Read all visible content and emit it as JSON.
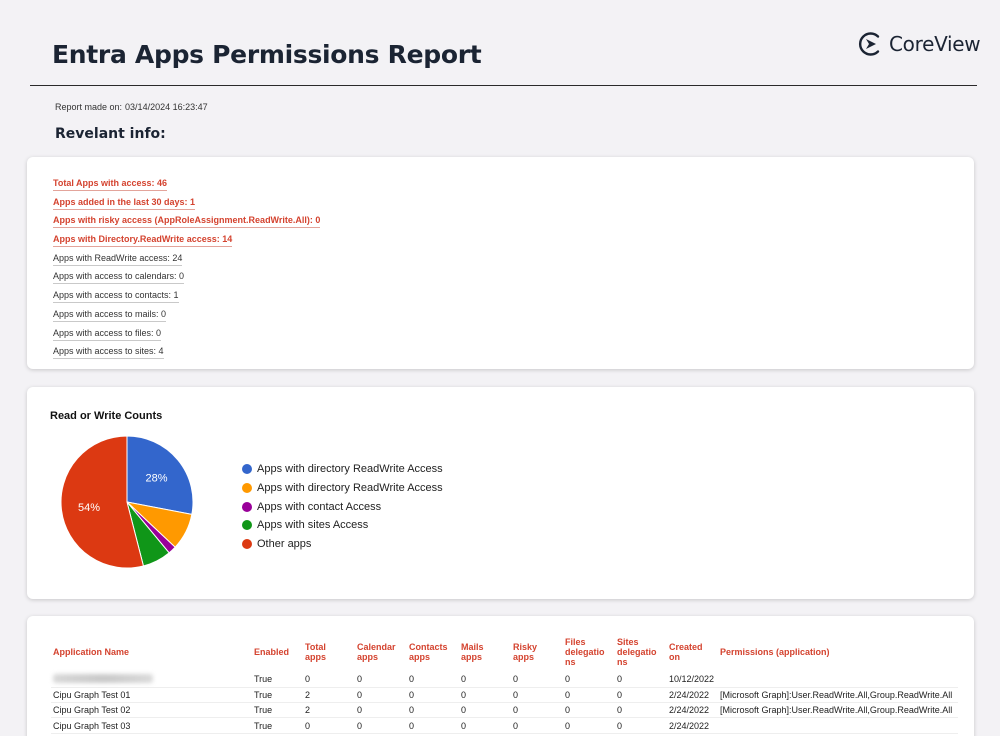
{
  "header": {
    "title": "Entra Apps Permissions Report",
    "logo_text": "CoreView",
    "report_made_label": "Report made on:",
    "report_made_value": "03/14/2024 16:23:47",
    "subtitle": "Revelant info:"
  },
  "info": {
    "items": [
      {
        "label": "Total Apps with access: 46",
        "highlight": true
      },
      {
        "label": "Apps added in the last 30 days: 1",
        "highlight": true
      },
      {
        "label": "Apps with risky access (AppRoleAssignment.ReadWrite.All): 0",
        "highlight": true
      },
      {
        "label": "Apps with Directory.ReadWrite access: 14",
        "highlight": true
      },
      {
        "label": "Apps with ReadWrite access: 24",
        "highlight": false
      },
      {
        "label": "Apps with access to calendars: 0",
        "highlight": false
      },
      {
        "label": "Apps with access to contacts: 1",
        "highlight": false
      },
      {
        "label": "Apps with access to mails: 0",
        "highlight": false
      },
      {
        "label": "Apps with access to files: 0",
        "highlight": false
      },
      {
        "label": "Apps with access to sites: 4",
        "highlight": false
      }
    ]
  },
  "chart_data": {
    "type": "pie",
    "title": "Read or Write Counts",
    "legend_position": "right",
    "slices": [
      {
        "name": "Apps with directory ReadWrite Access",
        "value": 28,
        "color": "#3366cc",
        "label": "28%"
      },
      {
        "name": "Apps with directory ReadWrite Access",
        "value": 9,
        "color": "#ff9900",
        "label": ""
      },
      {
        "name": "Apps with contact Access",
        "value": 2,
        "color": "#990099",
        "label": ""
      },
      {
        "name": "Apps with sites Access",
        "value": 7,
        "color": "#109618",
        "label": ""
      },
      {
        "name": "Other apps",
        "value": 54,
        "color": "#dc3912",
        "label": "54%"
      }
    ]
  },
  "table": {
    "columns": [
      "Application Name",
      "Enabled",
      "Total apps",
      "Calendar apps",
      "Contacts apps",
      "Mails apps",
      "Risky apps",
      "Files delegations",
      "Sites delegations",
      "Created on",
      "Permissions (application)"
    ],
    "column_display": [
      "Application Name",
      "Enabled",
      "Total\napps",
      "Calendar\napps",
      "Contacts\napps",
      "Mails\napps",
      "Risky\napps",
      "Files\ndelegatio\nns",
      "Sites\ndelegatio\nns",
      "Created\non",
      "Permissions (application)"
    ],
    "rows": [
      {
        "name": "",
        "redacted": true,
        "cells": [
          "True",
          "0",
          "0",
          "0",
          "0",
          "0",
          "0",
          "0",
          "10/12/2022",
          ""
        ]
      },
      {
        "name": "Cipu Graph Test 01",
        "redacted": false,
        "cells": [
          "True",
          "2",
          "0",
          "0",
          "0",
          "0",
          "0",
          "0",
          "2/24/2022",
          "[Microsoft Graph]:User.ReadWrite.All,Group.ReadWrite.All"
        ]
      },
      {
        "name": "Cipu Graph Test 02",
        "redacted": false,
        "cells": [
          "True",
          "2",
          "0",
          "0",
          "0",
          "0",
          "0",
          "0",
          "2/24/2022",
          "[Microsoft Graph]:User.ReadWrite.All,Group.ReadWrite.All"
        ]
      },
      {
        "name": "Cipu Graph Test 03",
        "redacted": false,
        "cells": [
          "True",
          "0",
          "0",
          "0",
          "0",
          "0",
          "0",
          "0",
          "2/24/2022",
          ""
        ]
      }
    ]
  }
}
